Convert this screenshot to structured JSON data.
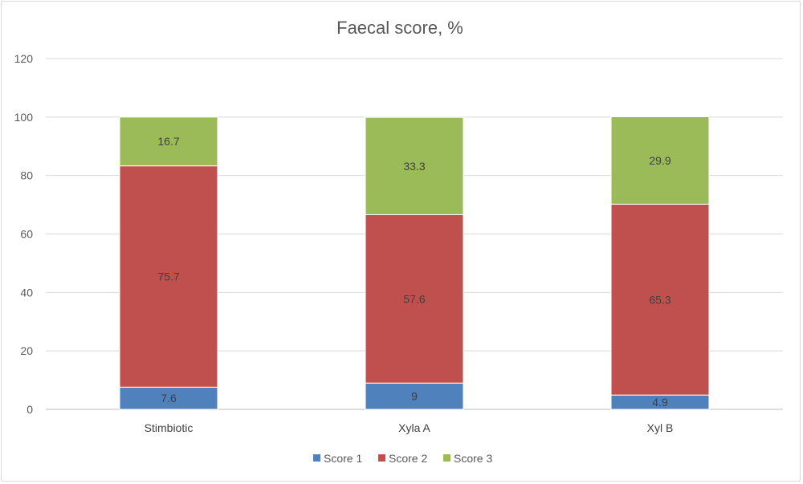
{
  "chart_data": {
    "type": "bar",
    "stacked": true,
    "title": "Faecal score, %",
    "xlabel": "",
    "ylabel": "",
    "ylim": [
      0,
      120
    ],
    "yticks": [
      0,
      20,
      40,
      60,
      80,
      100,
      120
    ],
    "grid": true,
    "legend_position": "bottom",
    "categories": [
      "Stimbiotic",
      "Xyla A",
      "Xyl B"
    ],
    "series": [
      {
        "name": "Score 1",
        "color": "#4f81bd",
        "values": [
          7.6,
          9,
          4.9
        ]
      },
      {
        "name": "Score 2",
        "color": "#c0504d",
        "values": [
          75.7,
          57.6,
          65.3
        ]
      },
      {
        "name": "Score 3",
        "color": "#9bbb59",
        "values": [
          16.7,
          33.3,
          29.9
        ]
      }
    ]
  }
}
